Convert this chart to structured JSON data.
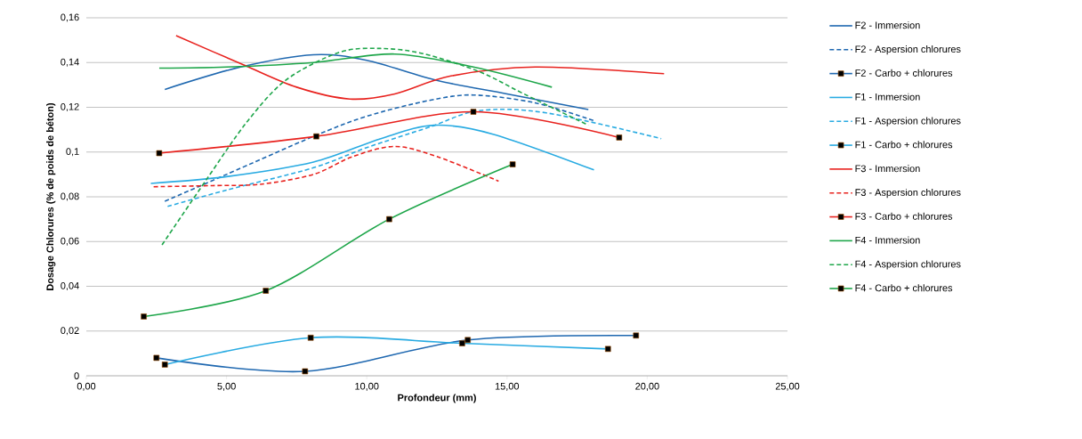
{
  "chart_data": {
    "type": "line",
    "xlabel": "Profondeur (mm)",
    "ylabel": "Dosage Chlorures (% de poids de béton)",
    "xlim": [
      0,
      25
    ],
    "xticks": [
      {
        "value": 0,
        "label": "0,00"
      },
      {
        "value": 5,
        "label": "5,00"
      },
      {
        "value": 10,
        "label": "10,00"
      },
      {
        "value": 15,
        "label": "15,00"
      },
      {
        "value": 20,
        "label": "20,00"
      },
      {
        "value": 25,
        "label": "25,00"
      }
    ],
    "ylim": [
      0,
      0.16
    ],
    "yticks": [
      0,
      {
        "value": 0.02,
        "label": "0,02"
      },
      {
        "value": 0.04,
        "label": "0,04"
      },
      {
        "value": 0.06,
        "label": "0,06"
      },
      {
        "value": 0.08,
        "label": "0,08"
      },
      {
        "value": 0.1,
        "label": "0,1"
      },
      {
        "value": 0.12,
        "label": "0,12"
      },
      {
        "value": 0.14,
        "label": "0,14"
      },
      {
        "value": 0.16,
        "label": "0,16"
      }
    ],
    "grid": "y",
    "legend": "right",
    "series": [
      {
        "name": "F2 - Immersion",
        "color": "#1f68b0",
        "line_style": "solid",
        "marker": "none",
        "x": [
          2.8,
          5.5,
          8.1,
          10,
          12.5,
          15,
          17.9
        ],
        "values": [
          0.128,
          0.138,
          0.1435,
          0.141,
          0.132,
          0.126,
          0.119
        ]
      },
      {
        "name": "F2 - Aspersion chlorures",
        "color": "#1f68b0",
        "line_style": "dashed",
        "marker": "none",
        "x": [
          2.8,
          5,
          8.1,
          10,
          12.2,
          13.8,
          16,
          18.1
        ],
        "values": [
          0.078,
          0.09,
          0.107,
          0.116,
          0.123,
          0.1255,
          0.122,
          0.114
        ]
      },
      {
        "name": "F2 - Carbo + chlorures",
        "color": "#1f68b0",
        "line_style": "solid",
        "marker": "square",
        "x": [
          2.5,
          7.8,
          13.6,
          19.6
        ],
        "values": [
          0.008,
          0.002,
          0.016,
          0.018
        ]
      },
      {
        "name": "F1 - Immersion",
        "color": "#29abe2",
        "line_style": "solid",
        "marker": "none",
        "x": [
          2.3,
          5,
          8.1,
          10.5,
          12.4,
          14.5,
          18.1
        ],
        "values": [
          0.086,
          0.089,
          0.0955,
          0.106,
          0.112,
          0.108,
          0.092
        ]
      },
      {
        "name": "F1 - Aspersion chlorures",
        "color": "#29abe2",
        "line_style": "dashed",
        "marker": "none",
        "x": [
          2.9,
          5,
          8.1,
          10,
          12.2,
          14,
          16.4,
          20.5
        ],
        "values": [
          0.0757,
          0.083,
          0.093,
          0.102,
          0.111,
          0.1185,
          0.1175,
          0.106
        ]
      },
      {
        "name": "F1 - Carbo + chlorures",
        "color": "#29abe2",
        "line_style": "solid",
        "marker": "square",
        "x": [
          2.8,
          8,
          13.4,
          18.6
        ],
        "values": [
          0.005,
          0.017,
          0.0145,
          0.012
        ]
      },
      {
        "name": "F3 - Immersion",
        "color": "#e8221e",
        "line_style": "solid",
        "marker": "none",
        "x": [
          3.2,
          5.6,
          7.5,
          9.4,
          11,
          13,
          16,
          20.6
        ],
        "values": [
          0.152,
          0.139,
          0.129,
          0.1237,
          0.126,
          0.134,
          0.138,
          0.135
        ]
      },
      {
        "name": "F3 - Aspersion chlorures",
        "color": "#e8221e",
        "line_style": "dashed",
        "marker": "none",
        "x": [
          2.4,
          4.5,
          6.2,
          8.1,
          9.5,
          11,
          12.5,
          14.7
        ],
        "values": [
          0.0845,
          0.085,
          0.0856,
          0.09,
          0.098,
          0.1025,
          0.098,
          0.087
        ]
      },
      {
        "name": "F3 - Carbo + chlorures",
        "color": "#e8221e",
        "line_style": "solid",
        "marker": "square",
        "x": [
          2.6,
          8.2,
          13.8,
          19.0
        ],
        "values": [
          0.0995,
          0.107,
          0.118,
          0.1065
        ]
      },
      {
        "name": "F4 - Immersion",
        "color": "#1ea64a",
        "line_style": "solid",
        "marker": "none",
        "x": [
          2.6,
          5,
          8.1,
          11,
          13.8,
          16.6
        ],
        "values": [
          0.1375,
          0.138,
          0.14,
          0.1438,
          0.138,
          0.129
        ]
      },
      {
        "name": "F4 - Aspersion chlorures",
        "color": "#1ea64a",
        "line_style": "dashed",
        "marker": "none",
        "x": [
          2.7,
          4.3,
          5.7,
          7.1,
          9,
          10.5,
          12,
          14,
          15.6,
          17.9
        ],
        "values": [
          0.0585,
          0.088,
          0.113,
          0.132,
          0.1445,
          0.1463,
          0.144,
          0.136,
          0.126,
          0.112
        ]
      },
      {
        "name": "F4 - Carbo + chlorures",
        "color": "#1ea64a",
        "line_style": "solid",
        "marker": "square",
        "x": [
          2.05,
          6.4,
          10.8,
          15.2
        ],
        "values": [
          0.0265,
          0.038,
          0.07,
          0.0945
        ]
      }
    ]
  }
}
